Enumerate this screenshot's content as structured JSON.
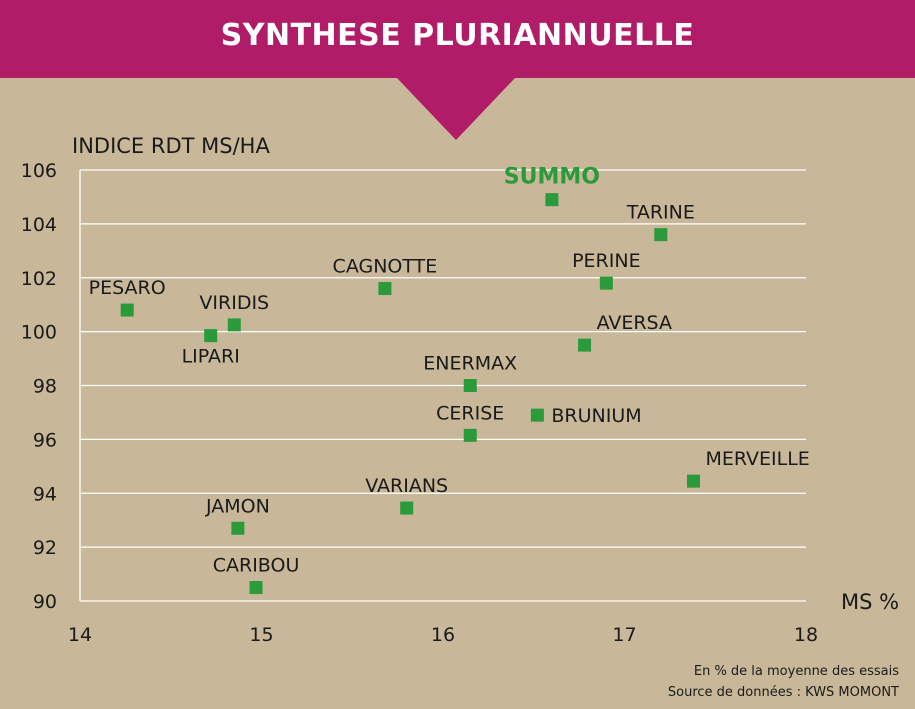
{
  "chart_data": {
    "type": "scatter",
    "title": "SYNTHESE PLURIANNUELLE",
    "xlabel": "MS %",
    "ylabel": "INDICE RDT MS/HA",
    "xlim": [
      14,
      18
    ],
    "ylim": [
      90,
      106
    ],
    "x_ticks": [
      "14",
      "15",
      "16",
      "17",
      "18"
    ],
    "y_ticks": [
      "90",
      "92",
      "94",
      "96",
      "98",
      "100",
      "102",
      "104",
      "106"
    ],
    "grid": "horizontal",
    "points": [
      {
        "label": "SUMMO",
        "x": 16.6,
        "y": 104.9,
        "highlight": true,
        "label_pos": "above"
      },
      {
        "label": "TARINE",
        "x": 17.2,
        "y": 103.6,
        "label_pos": "above"
      },
      {
        "label": "PERINE",
        "x": 16.9,
        "y": 101.8,
        "label_pos": "above"
      },
      {
        "label": "CAGNOTTE",
        "x": 15.68,
        "y": 101.6,
        "label_pos": "above"
      },
      {
        "label": "PESARO",
        "x": 14.26,
        "y": 100.8,
        "label_pos": "above"
      },
      {
        "label": "VIRIDIS",
        "x": 14.85,
        "y": 100.25,
        "label_pos": "above"
      },
      {
        "label": "LIPARI",
        "x": 14.72,
        "y": 99.85,
        "label_pos": "below"
      },
      {
        "label": "AVERSA",
        "x": 16.78,
        "y": 99.5,
        "label_pos": "above-right"
      },
      {
        "label": "ENERMAX",
        "x": 16.15,
        "y": 98.0,
        "label_pos": "above"
      },
      {
        "label": "BRUNIUM",
        "x": 16.52,
        "y": 96.9,
        "label_pos": "right"
      },
      {
        "label": "CERISE",
        "x": 16.15,
        "y": 96.15,
        "label_pos": "above"
      },
      {
        "label": "MERVEILLE",
        "x": 17.38,
        "y": 94.45,
        "label_pos": "above-right"
      },
      {
        "label": "VARIANS",
        "x": 15.8,
        "y": 93.45,
        "label_pos": "above"
      },
      {
        "label": "JAMON",
        "x": 14.87,
        "y": 92.7,
        "label_pos": "above"
      },
      {
        "label": "CARIBOU",
        "x": 14.97,
        "y": 90.5,
        "label_pos": "above"
      }
    ]
  },
  "colors": {
    "background": "#c8b899",
    "banner": "#b01c68",
    "marker": "#2a9a3a",
    "highlight_label": "#2a9a3a",
    "gridline": "#ffffff",
    "text": "#1a1a1a"
  },
  "footnotes": {
    "line1": "En % de la moyenne des essais",
    "line2": "Source de données : KWS MOMONT"
  }
}
